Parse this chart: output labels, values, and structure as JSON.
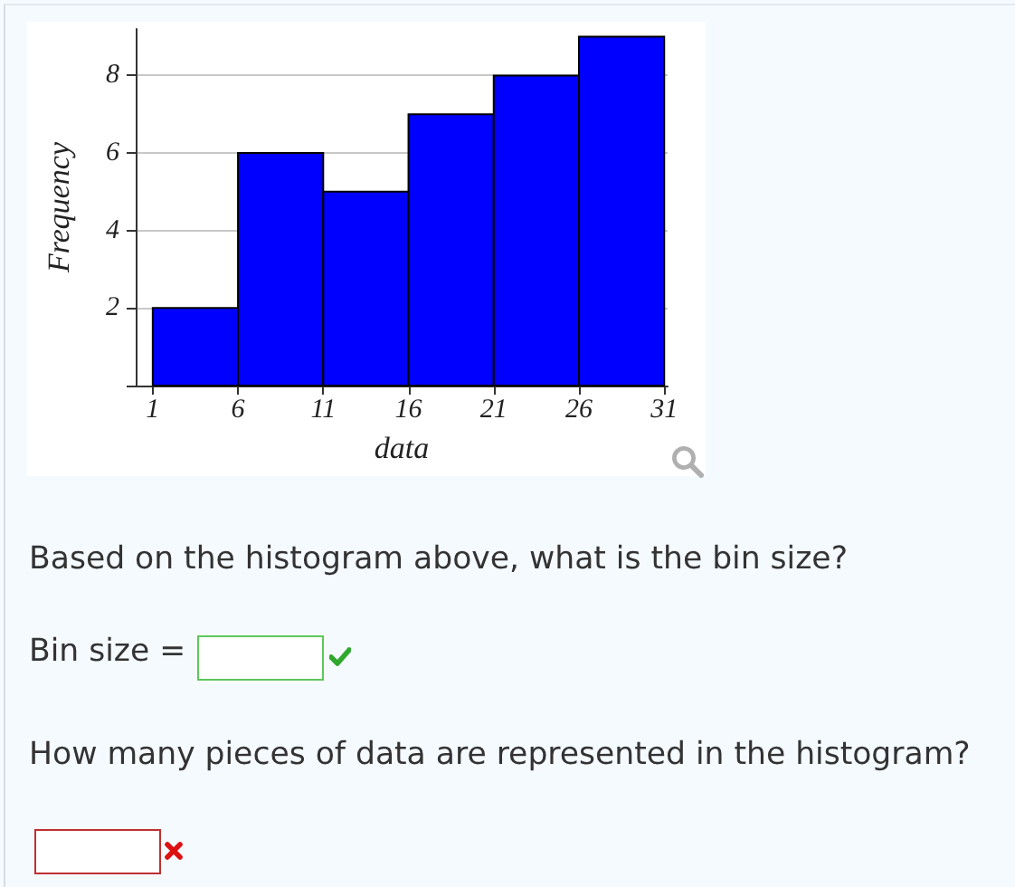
{
  "chart_data": {
    "type": "histogram",
    "bins": [
      1,
      6,
      11,
      16,
      21,
      26,
      31
    ],
    "values": [
      2,
      6,
      5,
      7,
      8,
      9
    ],
    "color": "#0000ff",
    "xlabel": "data",
    "ylabel": "Frequency",
    "xlim": [
      0,
      31.2
    ],
    "ylim": [
      0,
      9.2
    ],
    "xticks": [
      1,
      6,
      11,
      16,
      21,
      26,
      31
    ],
    "yticks": [
      {
        "value": 0,
        "label": null
      },
      2,
      4,
      6,
      8
    ],
    "grid": "y",
    "annotations": [
      "Based on the histogram above, what is the bin size?",
      "Bin size =",
      "How many pieces of data are represented in the histogram?"
    ]
  }
}
